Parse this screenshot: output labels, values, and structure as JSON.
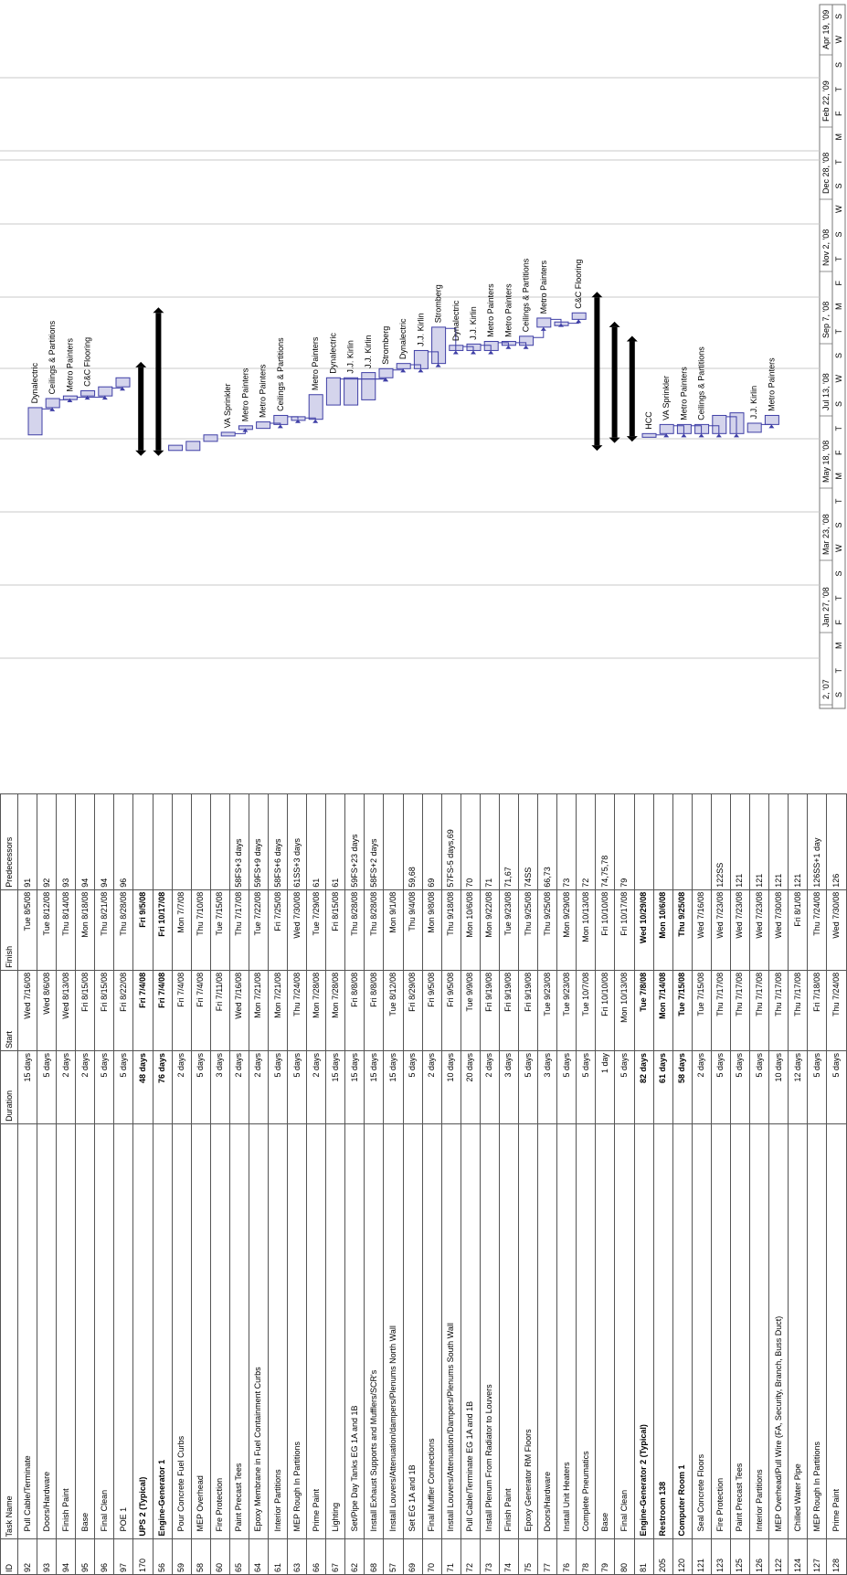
{
  "columns": {
    "id": "ID",
    "name": "Task Name",
    "duration": "Duration",
    "start": "Start",
    "finish": "Finish",
    "predecessors": "Predecessors"
  },
  "timescale": {
    "top": [
      "2, '07",
      "Jan 27, '08",
      "Mar 23, '08",
      "May 18, '08",
      "Jul 13, '08",
      "Sep 7, '08",
      "Nov 2, '08",
      "Dec 28, '08",
      "Feb 22, '09",
      "Apr 19, '09"
    ],
    "bottom": [
      "S",
      "T",
      "M",
      "F",
      "T",
      "S",
      "W",
      "S",
      "T",
      "M",
      "F",
      "T",
      "S",
      "W",
      "S",
      "T",
      "M",
      "F",
      "T",
      "S",
      "W",
      "S",
      "T",
      "M",
      "F",
      "T",
      "S",
      "W",
      "S"
    ]
  },
  "tasks": [
    {
      "id": "92",
      "name": "Pull Cable/Terminate",
      "duration": "15 days",
      "start": "Wed 7/16/08",
      "finish": "Tue 8/5/08",
      "pred": "91",
      "summary": false
    },
    {
      "id": "93",
      "name": "Doors/Hardware",
      "duration": "5 days",
      "start": "Wed 8/6/08",
      "finish": "Tue 8/12/08",
      "pred": "92",
      "summary": false
    },
    {
      "id": "94",
      "name": "Finish Paint",
      "duration": "2 days",
      "start": "Wed 8/13/08",
      "finish": "Thu 8/14/08",
      "pred": "93",
      "summary": false
    },
    {
      "id": "95",
      "name": "Base",
      "duration": "2 days",
      "start": "Fri 8/15/08",
      "finish": "Mon 8/18/08",
      "pred": "94",
      "summary": false
    },
    {
      "id": "96",
      "name": "Final Clean",
      "duration": "5 days",
      "start": "Fri 8/15/08",
      "finish": "Thu 8/21/08",
      "pred": "94",
      "summary": false
    },
    {
      "id": "97",
      "name": "POE 1",
      "duration": "5 days",
      "start": "Fri 8/22/08",
      "finish": "Thu 8/28/08",
      "pred": "96",
      "summary": false
    },
    {
      "id": "170",
      "name": "UPS 2 (Typical)",
      "duration": "48 days",
      "start": "Fri 7/4/08",
      "finish": "Fri 9/5/08",
      "pred": "",
      "summary": true
    },
    {
      "id": "56",
      "name": "Engine-Generator 1",
      "duration": "76 days",
      "start": "Fri 7/4/08",
      "finish": "Fri 10/17/08",
      "pred": "",
      "summary": true
    },
    {
      "id": "59",
      "name": "Pour Concrete Fuel Curbs",
      "duration": "2 days",
      "start": "Fri 7/4/08",
      "finish": "Mon 7/7/08",
      "pred": "",
      "summary": false
    },
    {
      "id": "58",
      "name": "MEP Overhead",
      "duration": "5 days",
      "start": "Fri 7/4/08",
      "finish": "Thu 7/10/08",
      "pred": "",
      "summary": false
    },
    {
      "id": "60",
      "name": "Fire Protection",
      "duration": "3 days",
      "start": "Fri 7/11/08",
      "finish": "Tue 7/15/08",
      "pred": "",
      "summary": false
    },
    {
      "id": "65",
      "name": "Paint Precast Tees",
      "duration": "2 days",
      "start": "Wed 7/16/08",
      "finish": "Thu 7/17/08",
      "pred": "58FS+3 days",
      "summary": false
    },
    {
      "id": "64",
      "name": "Epoxy Membrane in Fuel Containment Curbs",
      "duration": "2 days",
      "start": "Mon 7/21/08",
      "finish": "Tue 7/22/08",
      "pred": "59FS+9 days",
      "summary": false
    },
    {
      "id": "61",
      "name": "Interior Partitions",
      "duration": "5 days",
      "start": "Mon 7/21/08",
      "finish": "Fri 7/25/08",
      "pred": "58FS+6 days",
      "summary": false
    },
    {
      "id": "63",
      "name": "MEP Rough In Partitions",
      "duration": "5 days",
      "start": "Thu 7/24/08",
      "finish": "Wed 7/30/08",
      "pred": "61SS+3 days",
      "summary": false
    },
    {
      "id": "66",
      "name": "Prime Paint",
      "duration": "2 days",
      "start": "Mon 7/28/08",
      "finish": "Tue 7/29/08",
      "pred": "61",
      "summary": false
    },
    {
      "id": "67",
      "name": "Lighting",
      "duration": "15 days",
      "start": "Mon 7/28/08",
      "finish": "Fri 8/15/08",
      "pred": "61",
      "summary": false
    },
    {
      "id": "62",
      "name": "Set/Pipe Day Tanks EG 1A and 1B",
      "duration": "15 days",
      "start": "Fri 8/8/08",
      "finish": "Thu 8/28/08",
      "pred": "59FS+23 days",
      "summary": false
    },
    {
      "id": "68",
      "name": "Install Exhaust Supports and Mufflers/SCR's",
      "duration": "15 days",
      "start": "Fri 8/8/08",
      "finish": "Thu 8/28/08",
      "pred": "58FS+2 days",
      "summary": false
    },
    {
      "id": "57",
      "name": "Install Louvers/Attenuation/dampers/Plenums North Wall",
      "duration": "15 days",
      "start": "Tue 8/12/08",
      "finish": "Mon 9/1/08",
      "pred": "",
      "summary": false
    },
    {
      "id": "69",
      "name": "Set EG 1A and 1B",
      "duration": "5 days",
      "start": "Fri 8/29/08",
      "finish": "Thu 9/4/08",
      "pred": "59,68",
      "summary": false
    },
    {
      "id": "70",
      "name": "Final Muffler Connections",
      "duration": "2 days",
      "start": "Fri 9/5/08",
      "finish": "Mon 9/8/08",
      "pred": "69",
      "summary": false
    },
    {
      "id": "71",
      "name": "Install Louvers/Attenuation/Dampers/Plenums South Wall",
      "duration": "10 days",
      "start": "Fri 9/5/08",
      "finish": "Thu 9/18/08",
      "pred": "57FS-5 days,69",
      "summary": false
    },
    {
      "id": "72",
      "name": "Pull Cable/Terminate EG 1A and 1B",
      "duration": "20 days",
      "start": "Tue 9/9/08",
      "finish": "Mon 10/6/08",
      "pred": "70",
      "summary": false
    },
    {
      "id": "73",
      "name": "Install Plenum From Radiator to Louvers",
      "duration": "2 days",
      "start": "Fri 9/19/08",
      "finish": "Mon 9/22/08",
      "pred": "71",
      "summary": false
    },
    {
      "id": "74",
      "name": "Finish Paint",
      "duration": "3 days",
      "start": "Fri 9/19/08",
      "finish": "Tue 9/23/08",
      "pred": "71,67",
      "summary": false
    },
    {
      "id": "75",
      "name": "Epoxy Generator RM Floors",
      "duration": "5 days",
      "start": "Fri 9/19/08",
      "finish": "Thu 9/25/08",
      "pred": "74SS",
      "summary": false
    },
    {
      "id": "77",
      "name": "Doors/Hardware",
      "duration": "3 days",
      "start": "Tue 9/23/08",
      "finish": "Thu 9/25/08",
      "pred": "66,73",
      "summary": false
    },
    {
      "id": "76",
      "name": "Install Unit Heaters",
      "duration": "5 days",
      "start": "Tue 9/23/08",
      "finish": "Mon 9/29/08",
      "pred": "73",
      "summary": false
    },
    {
      "id": "78",
      "name": "Complete Pneumatics",
      "duration": "5 days",
      "start": "Tue 10/7/08",
      "finish": "Mon 10/13/08",
      "pred": "72",
      "summary": false
    },
    {
      "id": "79",
      "name": "Base",
      "duration": "1 day",
      "start": "Fri 10/10/08",
      "finish": "Fri 10/10/08",
      "pred": "74,75,78",
      "summary": false
    },
    {
      "id": "80",
      "name": "Final Clean",
      "duration": "5 days",
      "start": "Mon 10/13/08",
      "finish": "Fri 10/17/08",
      "pred": "79",
      "summary": false
    },
    {
      "id": "81",
      "name": "Engine-Generator 2 (Typical)",
      "duration": "82 days",
      "start": "Tue 7/8/08",
      "finish": "Wed 10/29/08",
      "pred": "",
      "summary": true
    },
    {
      "id": "205",
      "name": "Restroom 138",
      "duration": "61 days",
      "start": "Mon 7/14/08",
      "finish": "Mon 10/6/08",
      "pred": "",
      "summary": true
    },
    {
      "id": "120",
      "name": "Computer Room 1",
      "duration": "58 days",
      "start": "Tue 7/15/08",
      "finish": "Thu 9/25/08",
      "pred": "",
      "summary": true
    },
    {
      "id": "121",
      "name": "Seal Concrete Floors",
      "duration": "2 days",
      "start": "Tue 7/15/08",
      "finish": "Wed 7/16/08",
      "pred": "",
      "summary": false
    },
    {
      "id": "123",
      "name": "Fire Protection",
      "duration": "5 days",
      "start": "Thu 7/17/08",
      "finish": "Wed 7/23/08",
      "pred": "122SS",
      "summary": false
    },
    {
      "id": "125",
      "name": "Paint Precast Tees",
      "duration": "5 days",
      "start": "Thu 7/17/08",
      "finish": "Wed 7/23/08",
      "pred": "121",
      "summary": false
    },
    {
      "id": "126",
      "name": "Interior Partitions",
      "duration": "5 days",
      "start": "Thu 7/17/08",
      "finish": "Wed 7/23/08",
      "pred": "121",
      "summary": false
    },
    {
      "id": "122",
      "name": "MEP Overhead/Pull Wire (FA, Security, Branch, Buss Duct)",
      "duration": "10 days",
      "start": "Thu 7/17/08",
      "finish": "Wed 7/30/08",
      "pred": "121",
      "summary": false
    },
    {
      "id": "124",
      "name": "Chilled Water Pipe",
      "duration": "12 days",
      "start": "Thu 7/17/08",
      "finish": "Fri 8/1/08",
      "pred": "121",
      "summary": false
    },
    {
      "id": "127",
      "name": "MEP Rough In Partitions",
      "duration": "5 days",
      "start": "Fri 7/18/08",
      "finish": "Thu 7/24/08",
      "pred": "126SS+1 day",
      "summary": false
    },
    {
      "id": "128",
      "name": "Prime Paint",
      "duration": "5 days",
      "start": "Thu 7/24/08",
      "finish": "Wed 7/30/08",
      "pred": "126",
      "summary": false
    }
  ],
  "bar_labels": [
    {
      "row": 0,
      "text": "Dynalectric"
    },
    {
      "row": 1,
      "text": "Ceilings & Partitions"
    },
    {
      "row": 2,
      "text": "Metro Painters"
    },
    {
      "row": 3,
      "text": "C&C Flooring"
    },
    {
      "row": 11,
      "text": "VA Sprinkler"
    },
    {
      "row": 12,
      "text": "Metro Painters"
    },
    {
      "row": 13,
      "text": "Metro Painters"
    },
    {
      "row": 14,
      "text": "Ceilings & Partitions"
    },
    {
      "row": 16,
      "text": "Metro Painters"
    },
    {
      "row": 17,
      "text": "Dynalectric"
    },
    {
      "row": 18,
      "text": "J.J. Kirlin"
    },
    {
      "row": 19,
      "text": "J.J. Kirlin"
    },
    {
      "row": 20,
      "text": "Stromberg"
    },
    {
      "row": 21,
      "text": "Dynalectric"
    },
    {
      "row": 22,
      "text": "J.J. Kirlin"
    },
    {
      "row": 23,
      "text": "Stromberg"
    },
    {
      "row": 24,
      "text": "Dynalectric"
    },
    {
      "row": 25,
      "text": "J.J. Kirlin"
    },
    {
      "row": 26,
      "text": "Metro Painters"
    },
    {
      "row": 27,
      "text": "Metro Painters"
    },
    {
      "row": 28,
      "text": "Ceilings & Partitions"
    },
    {
      "row": 29,
      "text": "Metro Painters"
    },
    {
      "row": 31,
      "text": "C&C Flooring"
    },
    {
      "row": 35,
      "text": "HCC"
    },
    {
      "row": 36,
      "text": "VA Sprinkler"
    },
    {
      "row": 37,
      "text": "Metro Painters"
    },
    {
      "row": 38,
      "text": "Ceilings & Partitions"
    },
    {
      "row": 41,
      "text": "J.J. Kirlin"
    },
    {
      "row": 42,
      "text": "Metro Painters"
    }
  ],
  "colors": {
    "bar_fill": "#d4d4ec",
    "bar_stroke": "#3f3fa6",
    "link": "#3f3fa6",
    "summary": "#000000",
    "grid": "#c8c8c8"
  }
}
